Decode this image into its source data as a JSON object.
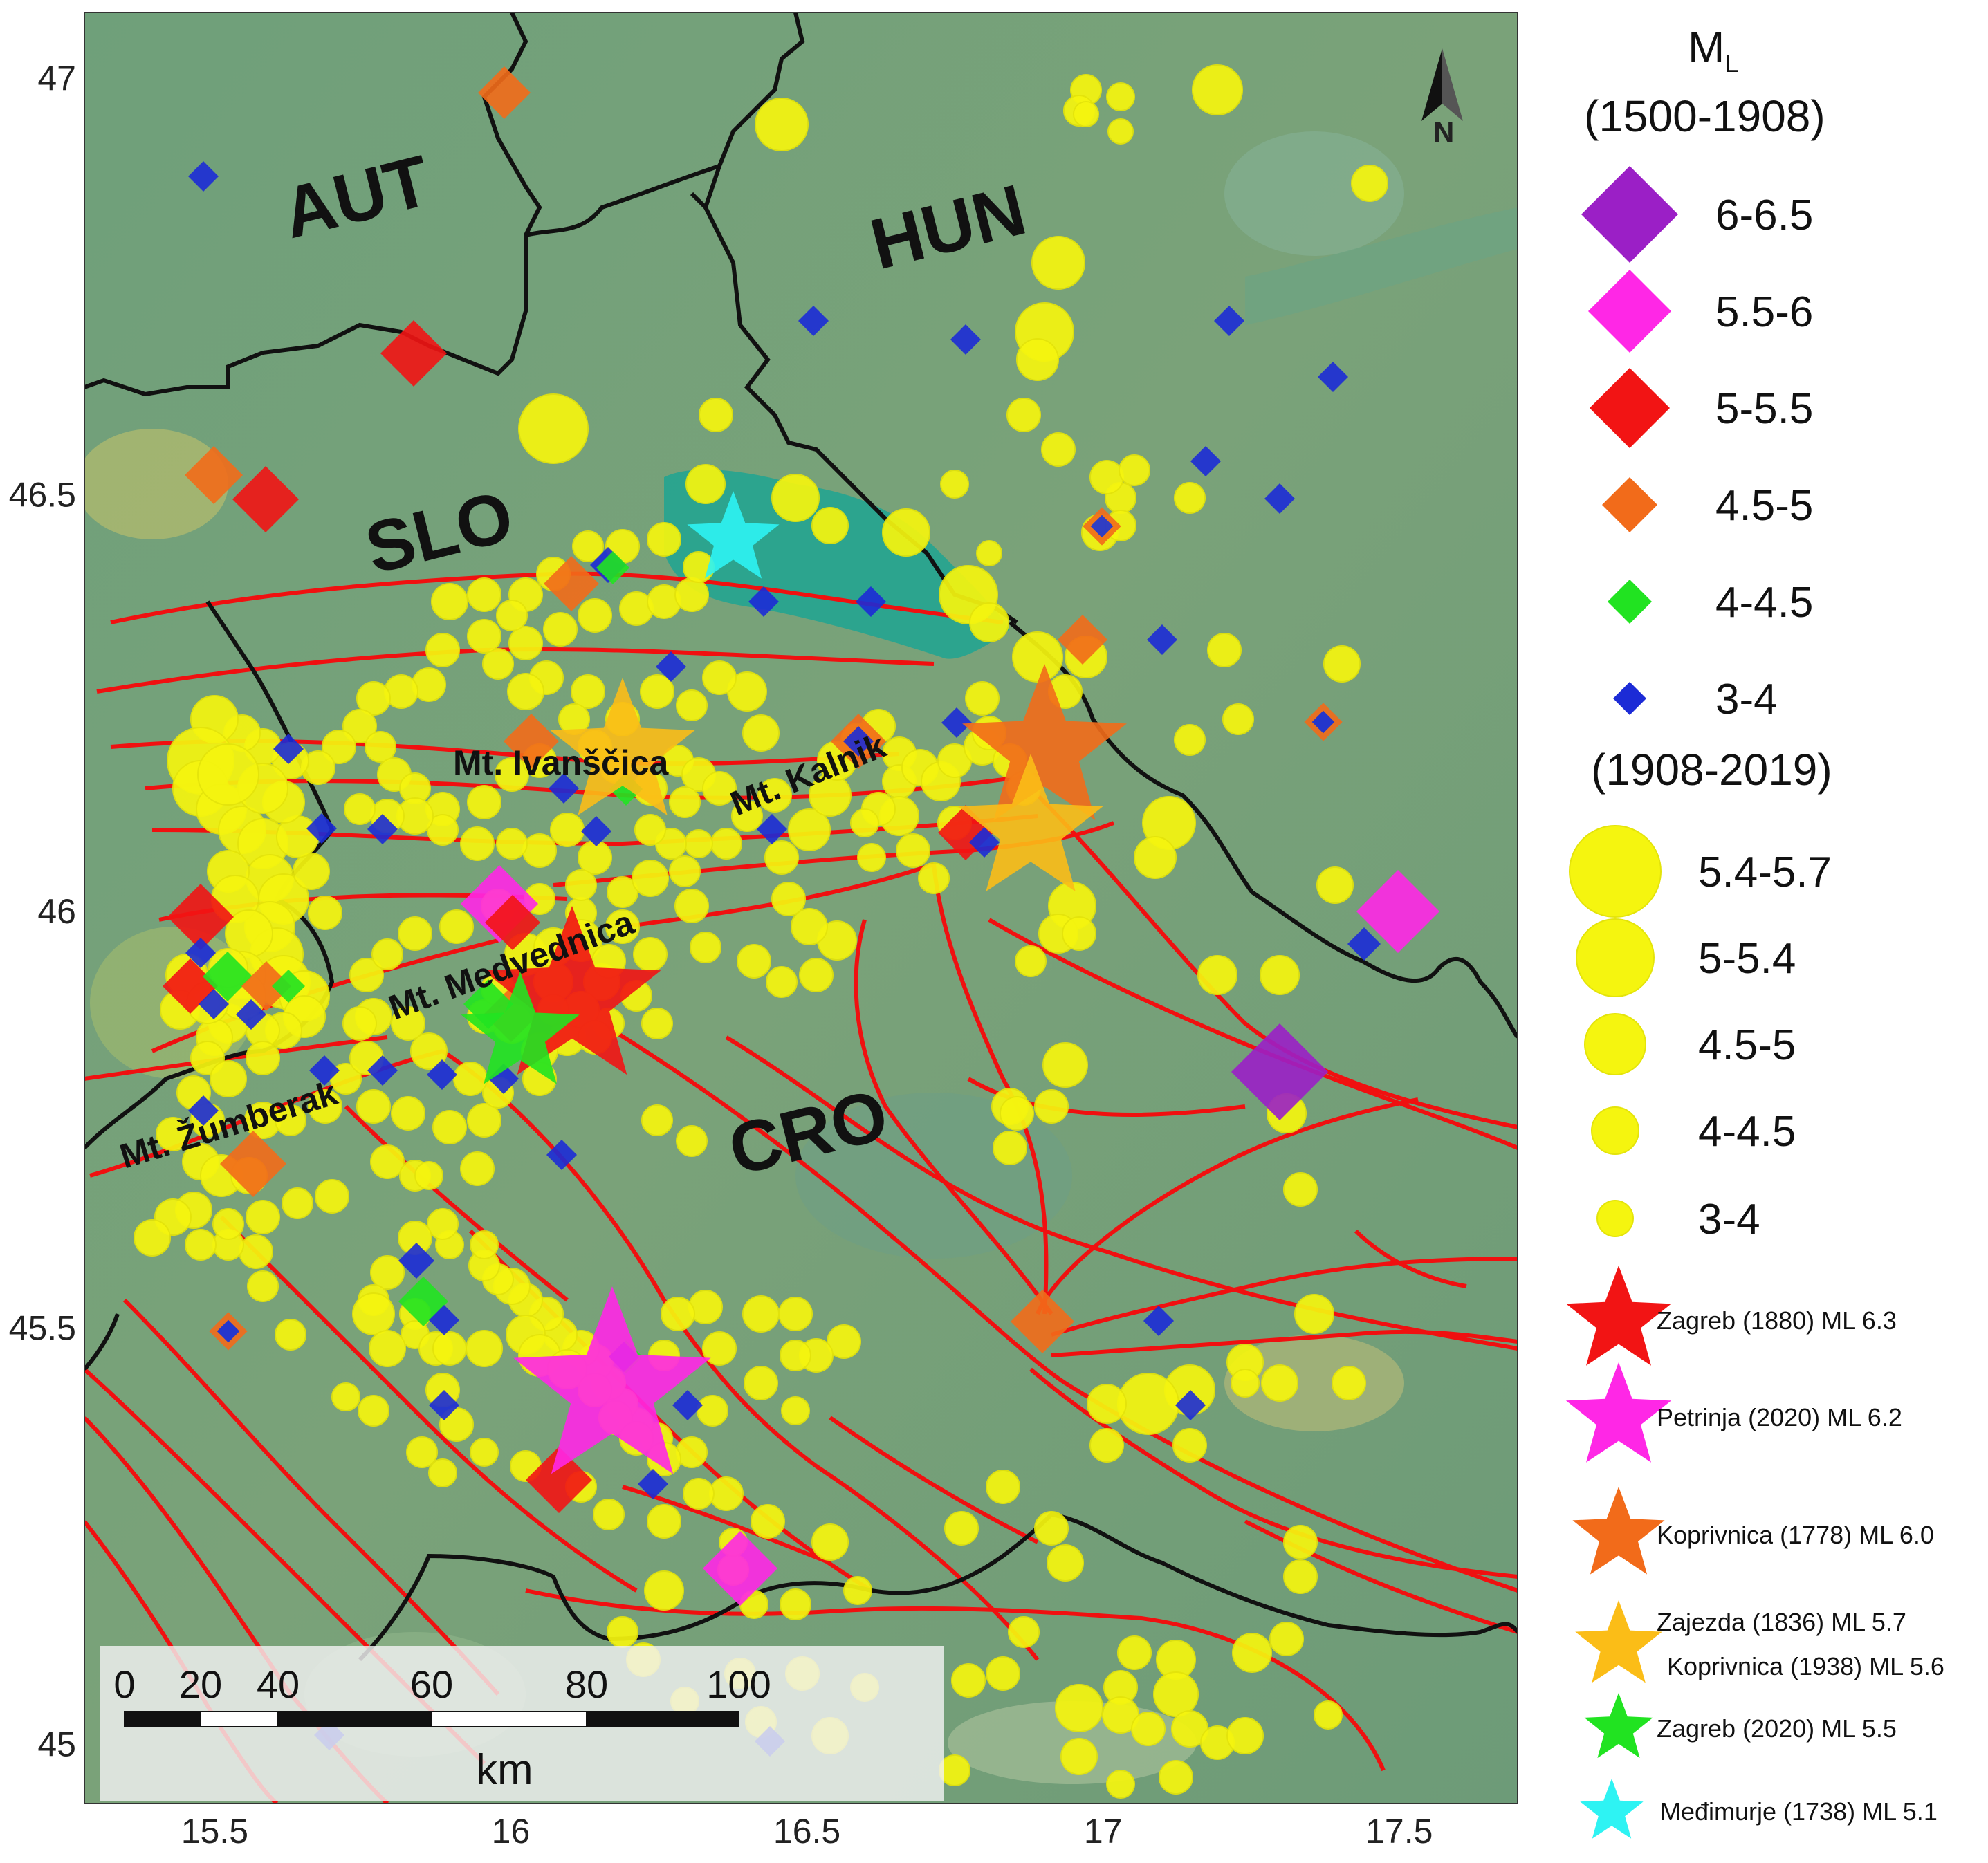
{
  "map": {
    "countries": {
      "aut": "AUT",
      "hun": "HUN",
      "slo": "SLO",
      "cro": "CRO"
    },
    "mountains": {
      "ivanscica": "Mt. Ivanščica",
      "kalnik": "Mt. Kalnik",
      "medvednica": "Mt. Medvednica",
      "zumberak": "Mt. Žumberak"
    },
    "north_arrow": "N",
    "axes": {
      "x_ticks": [
        "15.5",
        "16",
        "16.5",
        "17",
        "17.5"
      ],
      "y_ticks": [
        "47",
        "46.5",
        "46",
        "45.5",
        "45"
      ],
      "lon_range": [
        15.28,
        17.7
      ],
      "lat_range": [
        44.93,
        47.08
      ]
    },
    "scale_bar": {
      "labels": [
        "0",
        "20",
        "40",
        "60",
        "80",
        "100"
      ],
      "unit": "km"
    },
    "colors": {
      "terrain": "#78a07a",
      "basin": "#1fa592",
      "fault": "#f01010",
      "border": "#111111",
      "m6_6_5": "#9b1fc6",
      "m5_5_6": "#ff27e6",
      "m5_5_5": "#f21414",
      "m4_5_5": "#f26b1a",
      "m4_4_5": "#21e321",
      "m3_4": "#1c2bd6",
      "instrumental": "#f5f50f"
    }
  },
  "legend": {
    "title_main": "M",
    "title_sub": "L",
    "period1": "(1500-1908)",
    "diamonds": [
      {
        "label": "6-6.5",
        "color": "#9b1fc6"
      },
      {
        "label": "5.5-6",
        "color": "#ff27e6"
      },
      {
        "label": "5-5.5",
        "color": "#f21414"
      },
      {
        "label": "4.5-5",
        "color": "#f26b1a"
      },
      {
        "label": "4-4.5",
        "color": "#21e321"
      },
      {
        "label": "3-4",
        "color": "#1c2bd6"
      }
    ],
    "period2": "(1908-2019)",
    "circles": [
      {
        "label": "5.4-5.7"
      },
      {
        "label": "5-5.4"
      },
      {
        "label": "4.5-5"
      },
      {
        "label": "4-4.5"
      },
      {
        "label": "3-4"
      }
    ],
    "stars": [
      {
        "label": "Zagreb (1880) ML 6.3",
        "color": "#f21414"
      },
      {
        "label": "Petrinja (2020) ML 6.2",
        "color": "#ff27e6"
      },
      {
        "label": "Koprivnica (1778) ML 6.0",
        "color": "#f26b1a"
      },
      {
        "label": "Zajezda (1836) ML 5.7",
        "label2": "Koprivnica (1938) ML 5.6",
        "color": "#fbbd17"
      },
      {
        "label": "Zagreb (2020) ML 5.5",
        "color": "#21e321"
      },
      {
        "label": "Međimurje (1738) ML 5.1",
        "color": "#2ef3f3"
      }
    ]
  }
}
